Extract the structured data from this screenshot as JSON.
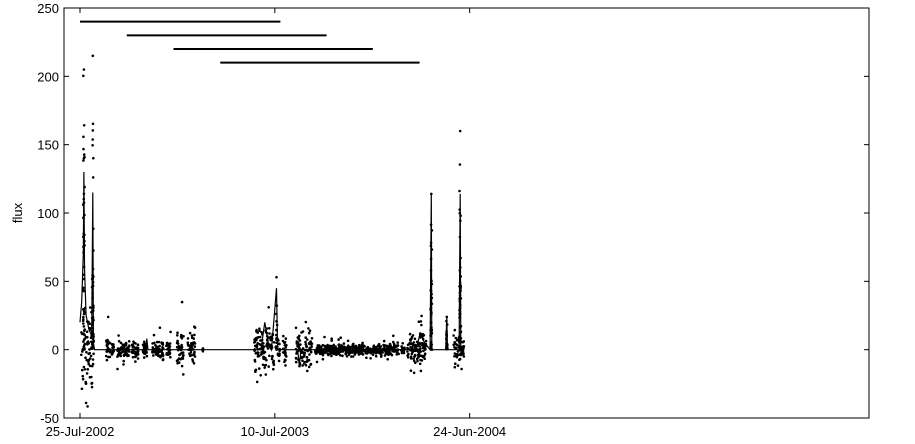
{
  "chart_data": {
    "type": "scatter",
    "title": "",
    "xlabel": "",
    "ylabel": "flux",
    "xlim": [
      "2002-07-25",
      "2004-06-24"
    ],
    "ylim": [
      -50,
      250
    ],
    "y_ticks": [
      -50,
      0,
      50,
      100,
      150,
      200,
      250
    ],
    "x_ticks": [
      {
        "date": "2002-07-25",
        "label": "25-Jul-2002"
      },
      {
        "date": "2003-07-10",
        "label": "10-Jul-2003"
      },
      {
        "date": "2004-06-24",
        "label": "24-Jun-2004"
      }
    ],
    "grid": false,
    "legend": "none",
    "colors": {
      "marks": "#000000",
      "background": "#ffffff"
    },
    "intervals": [
      {
        "start": "2002-07-25",
        "end": "2003-07-20",
        "y": 240
      },
      {
        "start": "2002-10-17",
        "end": "2003-10-11",
        "y": 230
      },
      {
        "start": "2003-01-09",
        "end": "2004-01-02",
        "y": 220
      },
      {
        "start": "2003-04-03",
        "end": "2004-03-26",
        "y": 210
      }
    ],
    "spikes": [
      {
        "date": "2002-08-01",
        "peak": 130,
        "point_max": 205
      },
      {
        "date": "2002-08-17",
        "peak": 115,
        "point_max": 215
      },
      {
        "date": "2003-07-13",
        "peak": 45,
        "point_max": 53
      },
      {
        "date": "2004-04-16",
        "peak": 114,
        "point_max": 114
      },
      {
        "date": "2004-05-14",
        "peak": 24,
        "point_max": 24
      },
      {
        "date": "2004-06-07",
        "peak": 114,
        "point_max": 160
      }
    ],
    "line": [
      {
        "date": "2002-07-25",
        "y": 20
      },
      {
        "date": "2002-07-28",
        "y": 35
      },
      {
        "date": "2002-07-31",
        "y": 70
      },
      {
        "date": "2002-08-01",
        "y": 130
      },
      {
        "date": "2002-08-02",
        "y": 60
      },
      {
        "date": "2002-08-05",
        "y": 25
      },
      {
        "date": "2002-08-10",
        "y": 15
      },
      {
        "date": "2002-08-15",
        "y": 10
      },
      {
        "date": "2002-08-17",
        "y": 115
      },
      {
        "date": "2002-08-18",
        "y": 5
      },
      {
        "date": "2002-08-20",
        "y": 0
      },
      {
        "date": "2002-11-20",
        "y": 0
      },
      {
        "date": "2002-11-22",
        "y": 8
      },
      {
        "date": "2002-11-24",
        "y": 0
      },
      {
        "date": "2003-06-15",
        "y": 0
      },
      {
        "date": "2003-06-22",
        "y": 20
      },
      {
        "date": "2003-06-28",
        "y": 5
      },
      {
        "date": "2003-07-04",
        "y": 0
      },
      {
        "date": "2003-07-13",
        "y": 45
      },
      {
        "date": "2003-07-15",
        "y": 0
      },
      {
        "date": "2003-08-20",
        "y": 0
      },
      {
        "date": "2003-08-23",
        "y": -12
      },
      {
        "date": "2003-08-26",
        "y": 0
      },
      {
        "date": "2004-03-20",
        "y": 0
      },
      {
        "date": "2004-03-27",
        "y": 12
      },
      {
        "date": "2004-04-04",
        "y": 5
      },
      {
        "date": "2004-04-14",
        "y": 0
      },
      {
        "date": "2004-04-16",
        "y": 114
      },
      {
        "date": "2004-04-17",
        "y": 0
      },
      {
        "date": "2004-05-12",
        "y": 0
      },
      {
        "date": "2004-05-14",
        "y": 24
      },
      {
        "date": "2004-05-15",
        "y": 0
      },
      {
        "date": "2004-06-05",
        "y": 0
      },
      {
        "date": "2004-06-07",
        "y": 114
      },
      {
        "date": "2004-06-08",
        "y": 0
      },
      {
        "date": "2004-06-12",
        "y": 0
      }
    ],
    "observation_segments": [
      {
        "start": "2002-07-27",
        "end": "2002-08-19",
        "spread": 15
      },
      {
        "start": "2002-09-10",
        "end": "2002-09-18",
        "spread": 4
      },
      {
        "start": "2002-09-20",
        "end": "2002-09-24",
        "spread": 3
      },
      {
        "start": "2002-09-30",
        "end": "2002-10-22",
        "spread": 3
      },
      {
        "start": "2002-10-26",
        "end": "2002-11-07",
        "spread": 3
      },
      {
        "start": "2002-11-15",
        "end": "2002-11-24",
        "spread": 3
      },
      {
        "start": "2002-12-02",
        "end": "2002-12-22",
        "spread": 3
      },
      {
        "start": "2002-12-27",
        "end": "2003-01-04",
        "spread": 3
      },
      {
        "start": "2003-01-15",
        "end": "2003-01-27",
        "spread": 6
      },
      {
        "start": "2003-02-03",
        "end": "2003-02-17",
        "spread": 5
      },
      {
        "start": "2003-03-02",
        "end": "2003-03-03",
        "spread": 1
      },
      {
        "start": "2003-06-03",
        "end": "2003-07-09",
        "spread": 10
      },
      {
        "start": "2003-07-14",
        "end": "2003-07-19",
        "spread": 4
      },
      {
        "start": "2003-07-24",
        "end": "2003-07-31",
        "spread": 5
      },
      {
        "start": "2003-08-17",
        "end": "2003-09-15",
        "spread": 7
      },
      {
        "start": "2003-09-20",
        "end": "2004-02-18",
        "spread": 2
      },
      {
        "start": "2004-02-22",
        "end": "2004-02-28",
        "spread": 2
      },
      {
        "start": "2004-03-04",
        "end": "2004-04-07",
        "spread": 6
      },
      {
        "start": "2004-05-26",
        "end": "2004-06-14",
        "spread": 6
      }
    ]
  }
}
